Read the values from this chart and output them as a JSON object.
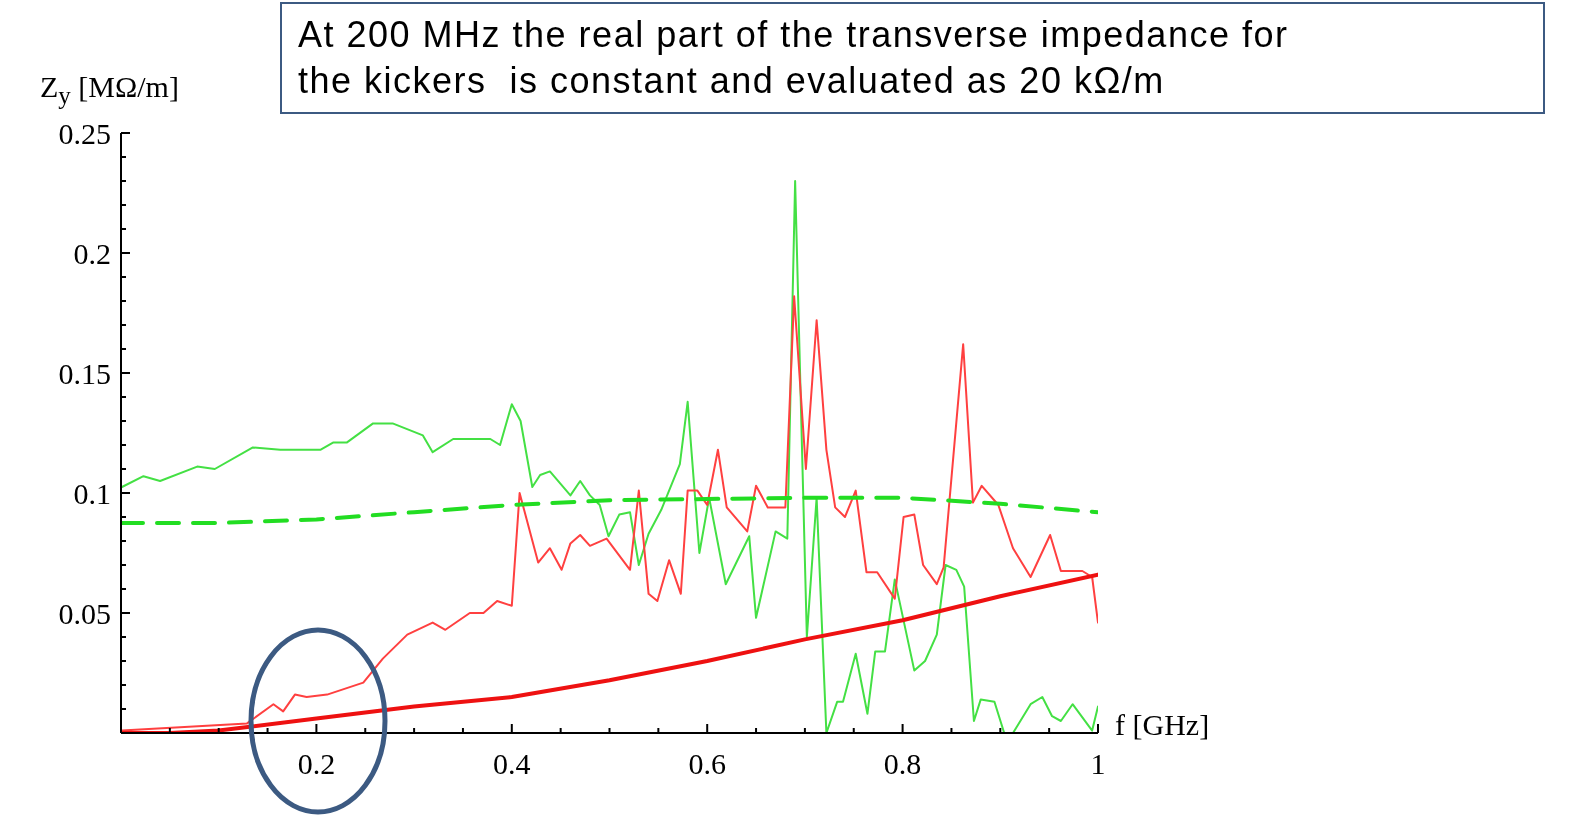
{
  "chart_data": {
    "type": "line",
    "ylabel": "Z$_{y}$ [MΩ/m]",
    "xlabel": "f [GHz]",
    "annotations": [
      "At 200 MHz the real part of the transverse impedance for the kickers  is constant and evaluated as 20 kΩ/m"
    ],
    "xlim": [
      0,
      1
    ],
    "ylim": [
      0,
      0.25
    ],
    "xticks": [
      {
        "value": 0.05,
        "label": null
      },
      {
        "value": 0.1,
        "label": null
      },
      {
        "value": 0.15,
        "label": null
      },
      0.2,
      {
        "value": 0.25,
        "label": null
      },
      {
        "value": 0.3,
        "label": null
      },
      {
        "value": 0.35,
        "label": null
      },
      0.4,
      {
        "value": 0.45,
        "label": null
      },
      {
        "value": 0.5,
        "label": null
      },
      {
        "value": 0.55,
        "label": null
      },
      0.6,
      {
        "value": 0.65,
        "label": null
      },
      {
        "value": 0.7,
        "label": null
      },
      {
        "value": 0.75,
        "label": null
      },
      0.8,
      {
        "value": 0.85,
        "label": null
      },
      {
        "value": 0.9,
        "label": null
      },
      {
        "value": 0.95,
        "label": null
      },
      1
    ],
    "yticks": [
      {
        "value": 0.01,
        "label": null
      },
      {
        "value": 0.02,
        "label": null
      },
      {
        "value": 0.03,
        "label": null
      },
      {
        "value": 0.04,
        "label": null
      },
      0.05,
      {
        "value": 0.06,
        "label": null
      },
      {
        "value": 0.07,
        "label": null
      },
      {
        "value": 0.08,
        "label": null
      },
      {
        "value": 0.09,
        "label": null
      },
      0.1,
      {
        "value": 0.11,
        "label": null
      },
      {
        "value": 0.12,
        "label": null
      },
      {
        "value": 0.13,
        "label": null
      },
      {
        "value": 0.14,
        "label": null
      },
      0.15,
      {
        "value": 0.16,
        "label": null
      },
      {
        "value": 0.17,
        "label": null
      },
      {
        "value": 0.18,
        "label": null
      },
      {
        "value": 0.19,
        "label": null
      },
      0.2,
      {
        "value": 0.21,
        "label": null
      },
      {
        "value": 0.22,
        "label": null
      },
      {
        "value": 0.23,
        "label": null
      },
      {
        "value": 0.24,
        "label": null
      },
      0.25
    ],
    "marker": "none",
    "series": [
      {
        "color": "#44e044",
        "line_style": "solid",
        "x": [
          0.001,
          0.023,
          0.04,
          0.078,
          0.096,
          0.135,
          0.163,
          0.204,
          0.217,
          0.231,
          0.258,
          0.278,
          0.309,
          0.319,
          0.34,
          0.378,
          0.388,
          0.4,
          0.409,
          0.421,
          0.429,
          0.439,
          0.46,
          0.47,
          0.48,
          0.49,
          0.499,
          0.51,
          0.521,
          0.53,
          0.54,
          0.553,
          0.572,
          0.58,
          0.592,
          0.602,
          0.619,
          0.643,
          0.65,
          0.67,
          0.682,
          0.69,
          0.702,
          0.712,
          0.722,
          0.733,
          0.739,
          0.752,
          0.764,
          0.772,
          0.782,
          0.792,
          0.812,
          0.823,
          0.835,
          0.844,
          0.855,
          0.863,
          0.873,
          0.88,
          0.894,
          0.904,
          0.913,
          0.931,
          0.943,
          0.953,
          0.962,
          0.974,
          0.994,
          1.0
        ],
        "values": [
          0.1025,
          0.107,
          0.105,
          0.111,
          0.11,
          0.119,
          0.118,
          0.118,
          0.121,
          0.121,
          0.129,
          0.129,
          0.124,
          0.117,
          0.1225,
          0.1225,
          0.12,
          0.137,
          0.13,
          0.1025,
          0.1075,
          0.109,
          0.099,
          0.105,
          0.099,
          0.095,
          0.082,
          0.091,
          0.092,
          0.07,
          0.083,
          0.093,
          0.112,
          0.138,
          0.075,
          0.098,
          0.062,
          0.082,
          0.048,
          0.084,
          0.081,
          0.23,
          0.04,
          0.098,
          0.0,
          0.013,
          0.013,
          0.033,
          0.008,
          0.034,
          0.034,
          0.064,
          0.026,
          0.03,
          0.041,
          0.07,
          0.068,
          0.061,
          0.005,
          0.014,
          0.013,
          0.0,
          0.0,
          0.012,
          0.015,
          0.007,
          0.005,
          0.012,
          0.001,
          0.011
        ]
      },
      {
        "color": "#ff4040",
        "line_style": "solid",
        "x": [
          0.001,
          0.129,
          0.156,
          0.166,
          0.178,
          0.19,
          0.211,
          0.248,
          0.268,
          0.293,
          0.319,
          0.332,
          0.357,
          0.371,
          0.385,
          0.4,
          0.408,
          0.427,
          0.439,
          0.451,
          0.46,
          0.47,
          0.48,
          0.497,
          0.521,
          0.53,
          0.54,
          0.549,
          0.561,
          0.573,
          0.58,
          0.59,
          0.6,
          0.611,
          0.62,
          0.641,
          0.65,
          0.662,
          0.68,
          0.689,
          0.701,
          0.712,
          0.722,
          0.731,
          0.741,
          0.752,
          0.763,
          0.774,
          0.792,
          0.801,
          0.812,
          0.821,
          0.835,
          0.842,
          0.862,
          0.872,
          0.881,
          0.898,
          0.913,
          0.931,
          0.951,
          0.962,
          0.984,
          0.994,
          1.0
        ],
        "values": [
          0.001,
          0.004,
          0.012,
          0.009,
          0.016,
          0.015,
          0.016,
          0.021,
          0.031,
          0.041,
          0.046,
          0.043,
          0.05,
          0.05,
          0.055,
          0.053,
          0.1,
          0.071,
          0.077,
          0.068,
          0.079,
          0.0825,
          0.078,
          0.081,
          0.068,
          0.101,
          0.058,
          0.055,
          0.072,
          0.058,
          0.101,
          0.101,
          0.095,
          0.118,
          0.094,
          0.084,
          0.103,
          0.094,
          0.094,
          0.182,
          0.11,
          0.172,
          0.118,
          0.094,
          0.09,
          0.101,
          0.067,
          0.067,
          0.056,
          0.09,
          0.091,
          0.07,
          0.062,
          0.069,
          0.162,
          0.096,
          0.103,
          0.095,
          0.077,
          0.065,
          0.0825,
          0.0675,
          0.0675,
          0.065,
          0.046
        ]
      },
      {
        "color": "#22dd22",
        "line_style": "dashed",
        "x": [
          0,
          0.1,
          0.2,
          0.3,
          0.4,
          0.5,
          0.6,
          0.7,
          0.8,
          0.9,
          1.0
        ],
        "values": [
          0.0875,
          0.0875,
          0.089,
          0.092,
          0.095,
          0.097,
          0.0975,
          0.098,
          0.098,
          0.0955,
          0.092
        ]
      },
      {
        "color": "#ee1111",
        "line_style": "solid",
        "x": [
          0,
          0.05,
          0.1,
          0.2,
          0.3,
          0.4,
          0.5,
          0.6,
          0.7,
          0.8,
          0.9,
          1.0
        ],
        "values": [
          0,
          0.0,
          0.001,
          0.006,
          0.011,
          0.015,
          0.022,
          0.03,
          0.039,
          0.047,
          0.057,
          0.066
        ]
      }
    ]
  }
}
